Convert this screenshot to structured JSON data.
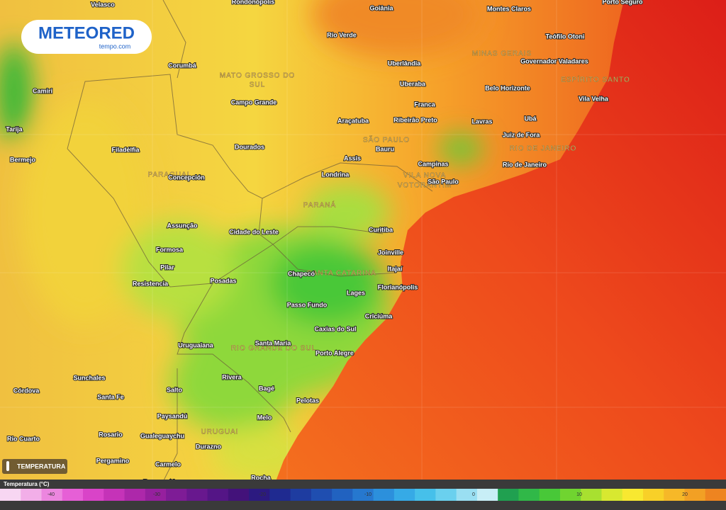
{
  "logo": {
    "brand": "METEORED",
    "site": "tempo.com"
  },
  "layer_button": "TEMPERATURA",
  "legend": {
    "title": "Temperatura (°C)",
    "ticks": [
      -40,
      -30,
      -20,
      -10,
      0,
      10,
      20
    ]
  },
  "regions": [
    "MATO GROSSO DO",
    "SUL",
    "MINAS GERAIS",
    "ESPÍRITO SANTO",
    "SÃO PAULO",
    "RIO DE JANEIRO",
    "PARAGUAI",
    "PARANÁ",
    "SANTA CATARINA",
    "RIO GRANDE DO SUL",
    "URUGUAI",
    "VILA NOVA",
    "VOTORANTIM"
  ],
  "cities": [
    "Velasco",
    "Rondonópolis",
    "Goiânia",
    "Montes Claros",
    "Porto Seguro",
    "Rio Verde",
    "Teófilo Otoni",
    "Corumbá",
    "Uberlândia",
    "Governador Valadares",
    "Camiri",
    "Uberaba",
    "Belo Horizonte",
    "Vila Velha",
    "Campo Grande",
    "Franca",
    "Araçatuba",
    "Ribeirão Preto",
    "Lavras",
    "Ubá",
    "Tarija",
    "Juiz de Fora",
    "Dourados",
    "Filadélfia",
    "Bauru",
    "Assis",
    "Campinas",
    "Rio de Janeiro",
    "Bermejo",
    "Concepción",
    "Londrina",
    "São Paulo",
    "Curitiba",
    "Assunção",
    "Cidade do Leste",
    "Joinville",
    "Formosa",
    "Pilar",
    "Itajaí",
    "Chapecó",
    "Resistencia",
    "Posadas",
    "Florianópolis",
    "Lages",
    "Passo Fundo",
    "Criciúma",
    "Caxias do Sul",
    "Santa Maria",
    "Uruguaiana",
    "Porto Alegre",
    "Sunchales",
    "Rivera",
    "Bagé",
    "Córdova",
    "Santa Fe",
    "Salto",
    "Pelotas",
    "Paysandú",
    "Melo",
    "Rosario",
    "Gualeguaychu",
    "Rio Cuarto",
    "Durazno",
    "Pergamino",
    "Carmelo",
    "Rocha",
    "Buenos Aires"
  ]
}
